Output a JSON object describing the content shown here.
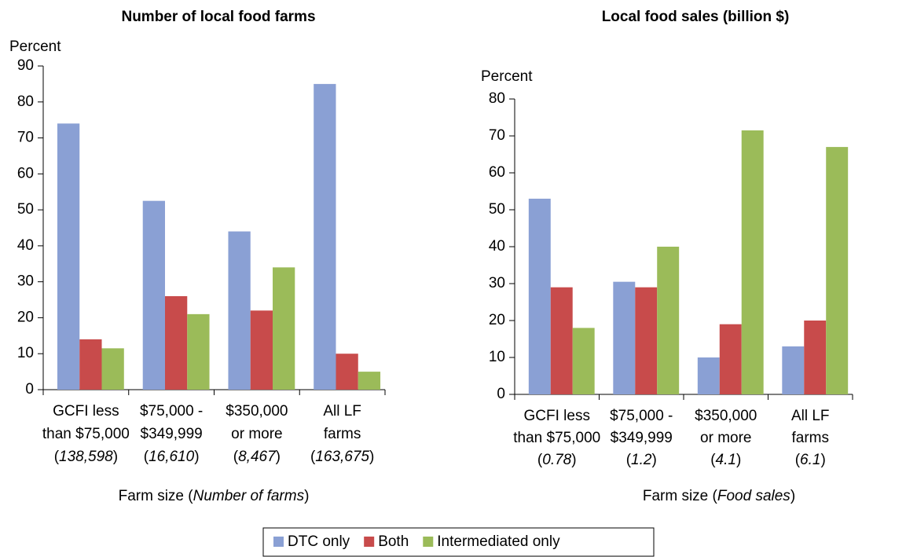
{
  "chart_data": [
    {
      "type": "bar",
      "title": "Number of local food farms",
      "ylabel": "Percent",
      "xlabel": "Farm size (Number of farms)",
      "categories": [
        [
          "GCFI less",
          "than $75,000",
          "(138,598)"
        ],
        [
          "$75,000 -",
          "$349,999",
          "(16,610)"
        ],
        [
          "$350,000",
          "or more",
          "(8,467)"
        ],
        [
          "All LF",
          "farms",
          "(163,675)"
        ]
      ],
      "series": [
        {
          "name": "DTC only",
          "color": "#8aa0d4",
          "values": [
            74,
            52.5,
            44,
            85
          ]
        },
        {
          "name": "Both",
          "color": "#c84b4b",
          "values": [
            14,
            26,
            22,
            10
          ]
        },
        {
          "name": "Intermediated only",
          "color": "#9bbb59",
          "values": [
            11.5,
            21,
            34,
            5
          ]
        }
      ],
      "ylim": [
        0,
        90
      ],
      "yticks": [
        0,
        10,
        20,
        30,
        40,
        50,
        60,
        70,
        80,
        90
      ]
    },
    {
      "type": "bar",
      "title": "Local food sales (billion $)",
      "ylabel": "Percent",
      "xlabel": "Farm size (Food sales)",
      "categories": [
        [
          "GCFI less",
          "than $75,000",
          "(0.78)"
        ],
        [
          "$75,000 -",
          "$349,999",
          "(1.2)"
        ],
        [
          "$350,000",
          "or more",
          "(4.1)"
        ],
        [
          "All LF",
          "farms",
          "(6.1)"
        ]
      ],
      "series": [
        {
          "name": "DTC only",
          "color": "#8aa0d4",
          "values": [
            53,
            30.5,
            10,
            13
          ]
        },
        {
          "name": "Both",
          "color": "#c84b4b",
          "values": [
            29,
            29,
            19,
            20
          ]
        },
        {
          "name": "Intermediated only",
          "color": "#9bbb59",
          "values": [
            18,
            40,
            71.5,
            67
          ]
        }
      ],
      "ylim": [
        0,
        80
      ],
      "yticks": [
        0,
        10,
        20,
        30,
        40,
        50,
        60,
        70,
        80
      ]
    }
  ]
}
